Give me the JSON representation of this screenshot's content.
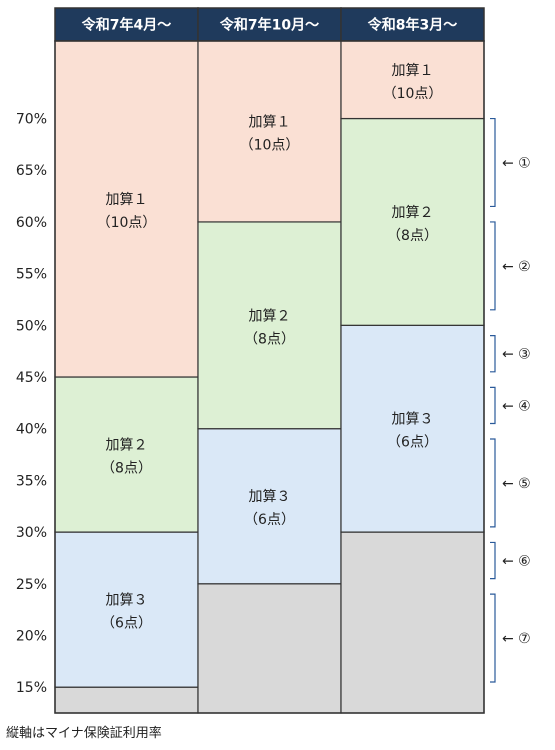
{
  "chart_data": {
    "type": "stacked-bar",
    "yaxis": {
      "ticks": [
        "70%",
        "65%",
        "60%",
        "55%",
        "50%",
        "45%",
        "40%",
        "35%",
        "30%",
        "25%",
        "20%",
        "15%"
      ],
      "tick_values": [
        70,
        65,
        60,
        55,
        50,
        45,
        40,
        35,
        30,
        25,
        20,
        15
      ],
      "range": [
        12.5,
        77.5
      ]
    },
    "columns": [
      {
        "header": "令和7年4月～",
        "gray_to": 15,
        "segments": [
          {
            "name": "加算３",
            "points": "（6点）",
            "from": 15,
            "to": 30,
            "color": "#dae8f7"
          },
          {
            "name": "加算２",
            "points": "（8点）",
            "from": 30,
            "to": 45,
            "color": "#ddf0d4"
          },
          {
            "name": "加算１",
            "points": "（10点）",
            "from": 45,
            "to": 77.5,
            "color": "#fae0d4"
          }
        ]
      },
      {
        "header": "令和7年10月～",
        "gray_to": 25,
        "segments": [
          {
            "name": "加算３",
            "points": "（6点）",
            "from": 25,
            "to": 40,
            "color": "#dae8f7"
          },
          {
            "name": "加算２",
            "points": "（8点）",
            "from": 40,
            "to": 60,
            "color": "#ddf0d4"
          },
          {
            "name": "加算１",
            "points": "（10点）",
            "from": 60,
            "to": 77.5,
            "color": "#fae0d4"
          }
        ]
      },
      {
        "header": "令和8年3月～",
        "gray_to": 30,
        "segments": [
          {
            "name": "加算３",
            "points": "（6点）",
            "from": 30,
            "to": 50,
            "color": "#dae8f7"
          },
          {
            "name": "加算２",
            "points": "（8点）",
            "from": 50,
            "to": 70,
            "color": "#ddf0d4"
          },
          {
            "name": "加算１",
            "points": "（10点）",
            "from": 70,
            "to": 77.5,
            "color": "#fae0d4"
          }
        ]
      }
    ],
    "annotations": [
      {
        "label": "←  ①",
        "from": 70,
        "to": 61.5
      },
      {
        "label": "←  ②",
        "from": 60,
        "to": 51.5
      },
      {
        "label": "←  ③",
        "from": 49,
        "to": 45.5
      },
      {
        "label": "←  ④",
        "from": 44,
        "to": 40.5
      },
      {
        "label": "←  ⑤",
        "from": 39,
        "to": 30.5
      },
      {
        "label": "←  ⑥",
        "from": 29,
        "to": 25.5
      },
      {
        "label": "←  ⑦",
        "from": 24,
        "to": 15.5
      }
    ],
    "colors": {
      "header_bg": "#1f3a5c",
      "gray": "#d9d9d9",
      "border": "#333333"
    }
  },
  "footnote": "縦軸はマイナ保険証利用率"
}
